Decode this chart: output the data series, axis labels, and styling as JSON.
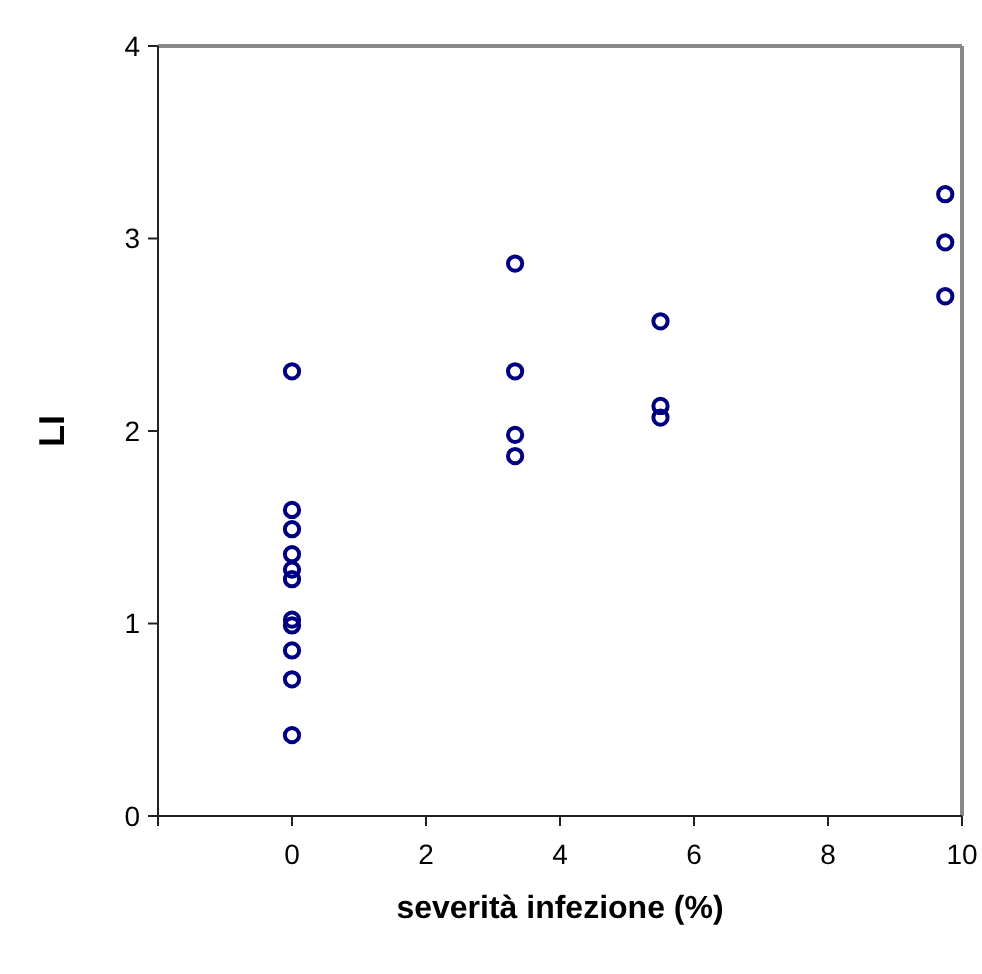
{
  "chart_data": {
    "type": "scatter",
    "xlabel": "severità infezione (%)",
    "ylabel": "LI",
    "x": [
      0,
      0,
      0,
      0,
      0,
      0,
      0,
      0,
      0,
      0,
      0,
      3.33,
      3.33,
      3.33,
      3.33,
      5.5,
      5.5,
      5.5,
      9.75,
      9.75,
      9.75
    ],
    "series": [
      {
        "color": "#000080",
        "values": [
          2.31,
          1.59,
          1.49,
          1.36,
          1.28,
          1.23,
          1.02,
          0.99,
          0.86,
          0.71,
          0.42,
          2.87,
          2.31,
          1.98,
          1.87,
          2.57,
          2.13,
          2.07,
          3.23,
          2.98,
          2.7
        ]
      }
    ],
    "xlim": [
      -2,
      10
    ],
    "xticks": [
      0,
      2,
      4,
      6,
      8,
      10
    ],
    "ylim": [
      0,
      4
    ],
    "yticks": [
      0,
      1,
      2,
      3,
      4
    ],
    "marker": "circle",
    "grid": false
  }
}
